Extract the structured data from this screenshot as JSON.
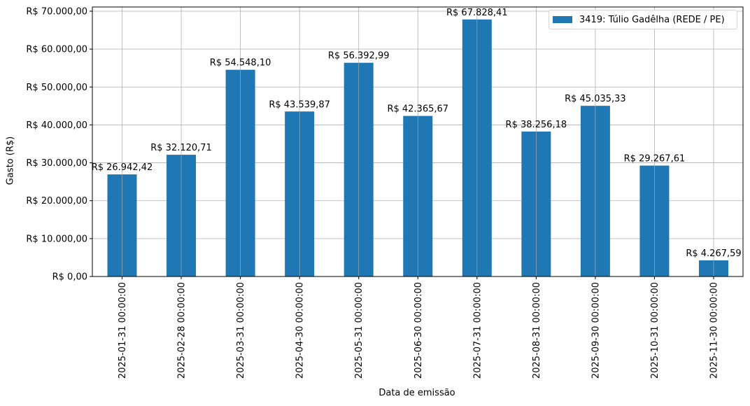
{
  "chart_data": {
    "type": "bar",
    "title": "",
    "xlabel": "Data de emissão",
    "ylabel": "Gasto (R$)",
    "ylim": [
      0,
      70000
    ],
    "grid": true,
    "legend_position": "upper right",
    "categories": [
      "2025-01-31 00:00:00",
      "2025-02-28 00:00:00",
      "2025-03-31 00:00:00",
      "2025-04-30 00:00:00",
      "2025-05-31 00:00:00",
      "2025-06-30 00:00:00",
      "2025-07-31 00:00:00",
      "2025-08-31 00:00:00",
      "2025-09-30 00:00:00",
      "2025-10-31 00:00:00",
      "2025-11-30 00:00:00"
    ],
    "series": [
      {
        "name": "3419: Túlio Gadêlha (REDE / PE)",
        "color": "#1f77b4",
        "values": [
          26942.42,
          32120.71,
          54548.1,
          43539.87,
          56392.99,
          42365.67,
          67828.41,
          38256.18,
          45035.33,
          29267.61,
          4267.59
        ],
        "labels": [
          "R$ 26.942,42",
          "R$ 32.120,71",
          "R$ 54.548,10",
          "R$ 43.539,87",
          "R$ 56.392,99",
          "R$ 42.365,67",
          "R$ 67.828,41",
          "R$ 38.256,18",
          "R$ 45.035,33",
          "R$ 29.267,61",
          "R$ 4.267,59"
        ]
      }
    ],
    "yticks": [
      0,
      10000,
      20000,
      30000,
      40000,
      50000,
      60000,
      70000
    ],
    "ytick_labels": [
      "R$ 0,00",
      "R$ 10.000,00",
      "R$ 20.000,00",
      "R$ 30.000,00",
      "R$ 40.000,00",
      "R$ 50.000,00",
      "R$ 60.000,00",
      "R$ 70.000,00"
    ]
  },
  "legend": {
    "label": "3419: Túlio Gadêlha (REDE / PE)"
  },
  "axes": {
    "xlabel": "Data de emissão",
    "ylabel": "Gasto (R$)"
  }
}
